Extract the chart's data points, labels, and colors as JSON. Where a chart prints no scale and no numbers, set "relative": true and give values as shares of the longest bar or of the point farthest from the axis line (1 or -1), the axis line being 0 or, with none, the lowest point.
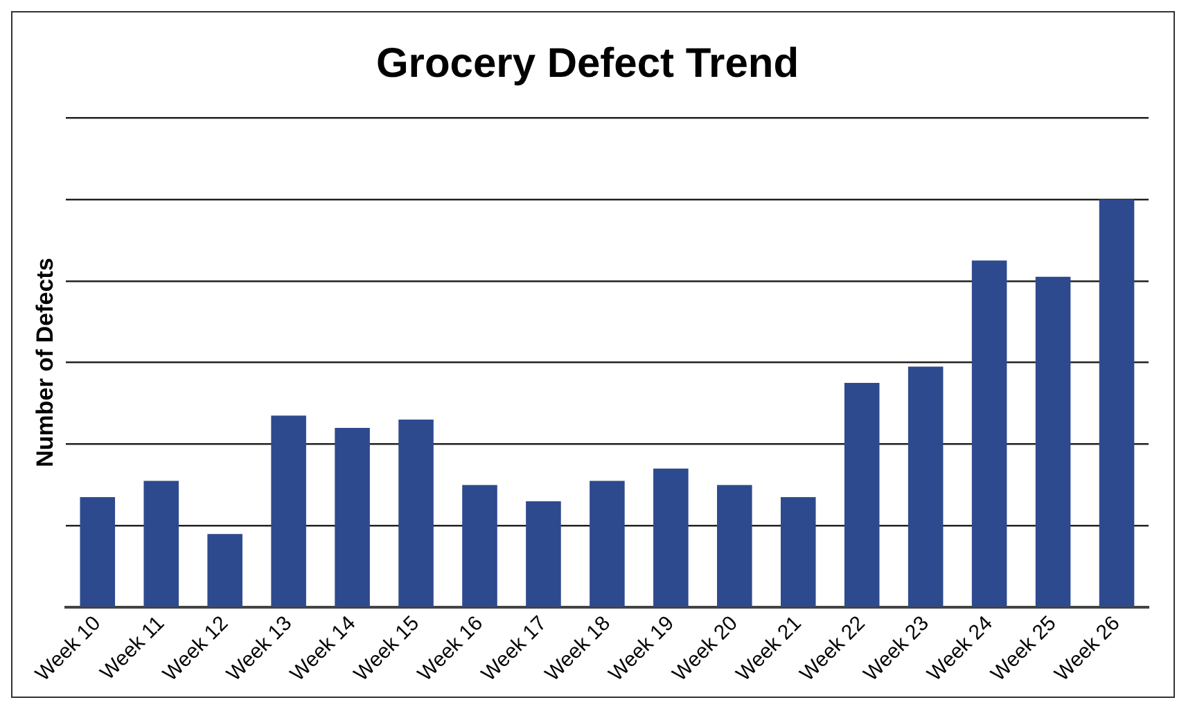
{
  "chart_data": {
    "type": "bar",
    "title": "Grocery Defect Trend",
    "ylabel": "Number of Defects",
    "categories": [
      "Week 10",
      "Week 11",
      "Week 12",
      "Week 13",
      "Week 14",
      "Week 15",
      "Week 16",
      "Week 17",
      "Week 18",
      "Week 19",
      "Week 20",
      "Week 21",
      "Week 22",
      "Week 23",
      "Week 24",
      "Week 25",
      "Week 26"
    ],
    "values": [
      0.27,
      0.31,
      0.18,
      0.47,
      0.44,
      0.46,
      0.3,
      0.26,
      0.31,
      0.34,
      0.3,
      0.27,
      0.55,
      0.59,
      0.85,
      0.81,
      1
    ],
    "color": "#2e4a8e",
    "relative": true,
    "grid": "y",
    "legend": false
  }
}
